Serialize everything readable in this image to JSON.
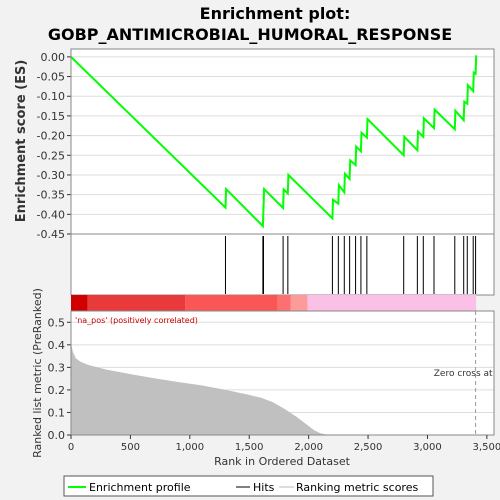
{
  "chart_data": {
    "type": "line",
    "title_line1": "Enrichment plot:",
    "title_line2": "GOBP_ANTIMICROBIAL_HUMORAL_RESPONSE",
    "es_panel": {
      "ylabel": "Enrichment score (ES)",
      "ylim": [
        -0.45,
        0.02
      ],
      "yticks": [
        "0.00",
        "-0.05",
        "-0.10",
        "-0.15",
        "-0.20",
        "-0.25",
        "-0.30",
        "-0.35",
        "-0.40",
        "-0.45"
      ],
      "ytick_values": [
        0.0,
        -0.05,
        -0.1,
        -0.15,
        -0.2,
        -0.25,
        -0.3,
        -0.35,
        -0.4,
        -0.45
      ],
      "series_name": "Enrichment profile",
      "color": "#00ff00",
      "x": [
        0,
        1300,
        1305,
        1615,
        1620,
        1625,
        1785,
        1790,
        1825,
        1830,
        2200,
        2205,
        2250,
        2255,
        2300,
        2305,
        2345,
        2350,
        2395,
        2400,
        2440,
        2445,
        2490,
        2495,
        2800,
        2805,
        2915,
        2920,
        2965,
        2970,
        3055,
        3060,
        3230,
        3235,
        3305,
        3310,
        3335,
        3340,
        3385,
        3390,
        3405,
        3410
      ],
      "y": [
        0.0,
        -0.383,
        -0.336,
        -0.43,
        -0.383,
        -0.336,
        -0.384,
        -0.337,
        -0.347,
        -0.3,
        -0.41,
        -0.363,
        -0.373,
        -0.326,
        -0.344,
        -0.297,
        -0.31,
        -0.263,
        -0.275,
        -0.228,
        -0.24,
        -0.193,
        -0.205,
        -0.158,
        -0.25,
        -0.203,
        -0.237,
        -0.19,
        -0.203,
        -0.156,
        -0.181,
        -0.134,
        -0.184,
        -0.137,
        -0.161,
        -0.114,
        -0.119,
        -0.072,
        -0.087,
        -0.04,
        -0.043,
        0.004
      ]
    },
    "hits": {
      "series_name": "Hits",
      "positions": [
        1300,
        1615,
        1620,
        1785,
        1825,
        2200,
        2250,
        2300,
        2345,
        2395,
        2440,
        2490,
        2800,
        2915,
        2965,
        3055,
        3230,
        3305,
        3335,
        3385,
        3405
      ]
    },
    "heatmap_bar": {
      "label": "'na_pos' (positively correlated)",
      "segments": [
        {
          "from": 0,
          "to": 140,
          "color": "#d10000"
        },
        {
          "from": 140,
          "to": 960,
          "color": "#e83a3a"
        },
        {
          "from": 960,
          "to": 1740,
          "color": "#fb5656"
        },
        {
          "from": 1740,
          "to": 1850,
          "color": "#fd7070"
        },
        {
          "from": 1850,
          "to": 1990,
          "color": "#fd9b9b"
        },
        {
          "from": 1990,
          "to": 3410,
          "color": "#fbc0e6"
        }
      ]
    },
    "metric_panel": {
      "ylabel": "Ranked list metric (PreRanked)",
      "ylim": [
        0,
        0.55
      ],
      "yticks": [
        "0.0",
        "0.1",
        "0.2",
        "0.3",
        "0.4",
        "0.5"
      ],
      "ytick_values": [
        0.0,
        0.1,
        0.2,
        0.3,
        0.4,
        0.5
      ],
      "series_name": "Ranking metric scores",
      "fill_color": "#c0c0c0",
      "x": [
        0,
        15,
        40,
        80,
        150,
        300,
        500,
        700,
        900,
        1100,
        1300,
        1500,
        1600,
        1700,
        1800,
        1900,
        2000,
        2050,
        2100,
        2130,
        2160,
        2200,
        2300,
        3410
      ],
      "y": [
        0.41,
        0.37,
        0.34,
        0.325,
        0.31,
        0.29,
        0.27,
        0.252,
        0.235,
        0.22,
        0.2,
        0.178,
        0.165,
        0.145,
        0.115,
        0.08,
        0.04,
        0.02,
        0.008,
        0.004,
        0.002,
        0.001,
        0.0,
        0.0
      ],
      "zero_cross_label": "Zero cross at",
      "zero_cross_x": 3405
    },
    "xaxis": {
      "xlabel": "Rank in Ordered Dataset",
      "xlim": [
        0,
        3560
      ],
      "xticks": [
        "0",
        "500",
        "1,000",
        "1,500",
        "2,000",
        "2,500",
        "3,000",
        "3,500"
      ],
      "xtick_values": [
        0,
        500,
        1000,
        1500,
        2000,
        2500,
        3000,
        3500
      ]
    },
    "legend": {
      "placement": "bottom",
      "entries": [
        "Enrichment profile",
        "Hits",
        "Ranking metric scores"
      ]
    }
  }
}
